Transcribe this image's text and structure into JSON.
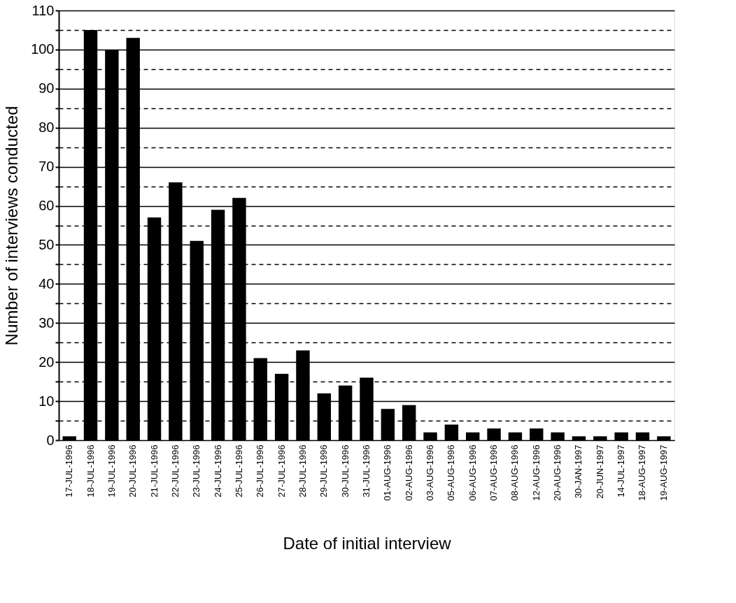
{
  "chart_data": {
    "type": "bar",
    "xlabel": "Date of initial interview",
    "ylabel": "Number of interviews conducted",
    "categories": [
      "17-JUL-1996",
      "18-JUL-1996",
      "19-JUL-1996",
      "20-JUL-1996",
      "21-JUL-1996",
      "22-JUL-1996",
      "23-JUL-1996",
      "24-JUL-1996",
      "25-JUL-1996",
      "26-JUL-1996",
      "27-JUL-1996",
      "28-JUL-1996",
      "29-JUL-1996",
      "30-JUL-1996",
      "31-JUL-1996",
      "01-AUG-1996",
      "02-AUG-1996",
      "03-AUG-1996",
      "05-AUG-1996",
      "06-AUG-1996",
      "07-AUG-1996",
      "08-AUG-1996",
      "12-AUG-1996",
      "20-AUG-1996",
      "30-JAN-1997",
      "20-JUN-1997",
      "14-JUL-1997",
      "18-AUG-1997",
      "19-AUG-1997"
    ],
    "values": [
      1,
      105,
      100,
      103,
      57,
      66,
      51,
      59,
      62,
      21,
      17,
      23,
      12,
      14,
      16,
      8,
      9,
      2,
      4,
      2,
      3,
      2,
      3,
      2,
      1,
      1,
      2,
      2,
      1
    ],
    "color": "#000000",
    "ylim": [
      0,
      110
    ],
    "yticks": [
      0,
      {
        "value": 5,
        "label": null
      },
      10,
      {
        "value": 15,
        "label": null
      },
      20,
      {
        "value": 25,
        "label": null
      },
      30,
      {
        "value": 35,
        "label": null
      },
      40,
      {
        "value": 45,
        "label": null
      },
      50,
      {
        "value": 55,
        "label": null
      },
      60,
      {
        "value": 65,
        "label": null
      },
      70,
      {
        "value": 75,
        "label": null
      },
      80,
      {
        "value": 85,
        "label": null
      },
      90,
      {
        "value": 95,
        "label": null
      },
      100,
      {
        "value": 105,
        "label": null
      },
      110
    ],
    "grid": true
  }
}
